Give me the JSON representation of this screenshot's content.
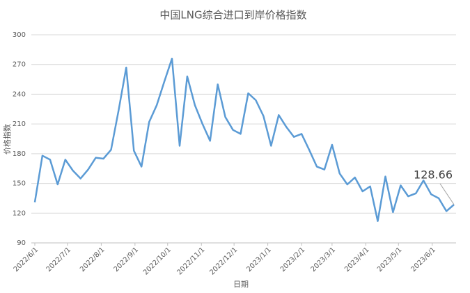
{
  "chart_data": {
    "type": "line",
    "title": "中国LNG综合进口到岸价格指数",
    "x_label": "日期",
    "y_label": "价格指数",
    "x": [
      "2022/6/1",
      "2022/6/8",
      "2022/6/15",
      "2022/6/22",
      "2022/6/29",
      "2022/7/6",
      "2022/7/13",
      "2022/7/20",
      "2022/7/27",
      "2022/8/3",
      "2022/8/10",
      "2022/8/17",
      "2022/8/24",
      "2022/8/31",
      "2022/9/7",
      "2022/9/14",
      "2022/9/21",
      "2022/9/28",
      "2022/10/5",
      "2022/10/12",
      "2022/10/19",
      "2022/10/26",
      "2022/11/2",
      "2022/11/9",
      "2022/11/16",
      "2022/11/23",
      "2022/11/30",
      "2022/12/7",
      "2022/12/14",
      "2022/12/21",
      "2022/12/28",
      "2023/1/4",
      "2023/1/11",
      "2023/1/18",
      "2023/1/25",
      "2023/2/1",
      "2023/2/8",
      "2023/2/15",
      "2023/2/22",
      "2023/3/1",
      "2023/3/8",
      "2023/3/15",
      "2023/3/22",
      "2023/3/29",
      "2023/4/5",
      "2023/4/12",
      "2023/4/19",
      "2023/4/26",
      "2023/5/3",
      "2023/5/10",
      "2023/5/17",
      "2023/5/24",
      "2023/5/31",
      "2023/6/7",
      "2023/6/14",
      "2023/6/21"
    ],
    "series": [
      {
        "name": "价格指数",
        "color": "#5b9bd5",
        "values": [
          131,
          178,
          174,
          149,
          174,
          163,
          155,
          164,
          176,
          175,
          184,
          224,
          267,
          183,
          167,
          212,
          229,
          253,
          276,
          188,
          258,
          229,
          210,
          193,
          250,
          217,
          204,
          200,
          241,
          234,
          218,
          188,
          219,
          207,
          197,
          200,
          184,
          167,
          164,
          189,
          160,
          149,
          156,
          142,
          147,
          112,
          157,
          121,
          148,
          137,
          140,
          153,
          139,
          135,
          122,
          128.66
        ]
      }
    ],
    "xlim": [
      "2022/6/1",
      "2023/6/21"
    ],
    "xticks": [
      "2022/6/1",
      "2022/7/1",
      "2022/8/1",
      "2022/9/1",
      "2022/10/1",
      "2022/11/1",
      "2022/12/1",
      "2023/1/1",
      "2023/2/1",
      "2023/3/1",
      "2023/4/1",
      "2023/5/1",
      "2023/6/1"
    ],
    "ylim": [
      90,
      300
    ],
    "yticks": [
      90,
      120,
      150,
      180,
      210,
      240,
      270,
      300
    ],
    "grid": true
  }
}
